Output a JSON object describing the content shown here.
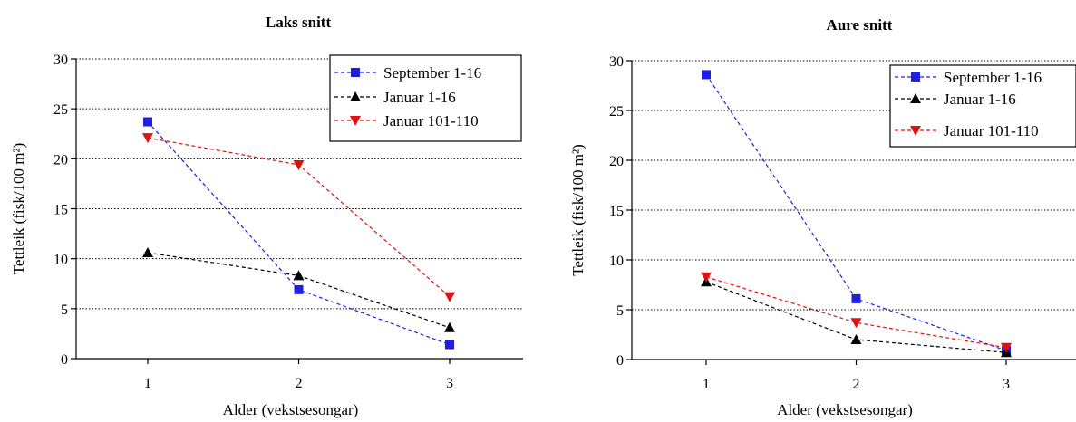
{
  "chart_data": [
    {
      "type": "line",
      "title": "Laks snitt",
      "xlabel": "Alder (vekstsesongar)",
      "ylabel": "Tettleik (fisk/100 m²)",
      "categories": [
        "1",
        "2",
        "3"
      ],
      "x": [
        1,
        2,
        3
      ],
      "ylim": [
        0,
        30
      ],
      "yticks": [
        "0",
        "5",
        "10",
        "15",
        "20",
        "25",
        "30"
      ],
      "grid": "horizontal dotted",
      "legend_position": "top-right",
      "series": [
        {
          "name": "September 1-16",
          "color": "#1f1fe0",
          "marker": "square",
          "values": [
            23.7,
            6.9,
            1.4
          ]
        },
        {
          "name": "Januar 1-16",
          "color": "#000000",
          "marker": "triangle-up",
          "values": [
            10.6,
            8.3,
            3.1
          ]
        },
        {
          "name": "Januar 101-110",
          "color": "#e01010",
          "marker": "triangle-down",
          "values": [
            22.1,
            19.4,
            6.2
          ]
        }
      ]
    },
    {
      "type": "line",
      "title": "Aure snitt",
      "xlabel": "Alder (vekstsesongar)",
      "ylabel": "Tettleik (fisk/100 m²)",
      "categories": [
        "1",
        "2",
        "3"
      ],
      "x": [
        1,
        2,
        3
      ],
      "ylim": [
        0,
        30
      ],
      "yticks": [
        "0",
        "5",
        "10",
        "15",
        "20",
        "25",
        "30"
      ],
      "grid": "horizontal dotted",
      "legend_position": "top-right",
      "series": [
        {
          "name": "September 1-16",
          "color": "#1f1fe0",
          "marker": "square",
          "values": [
            28.6,
            6.1,
            0.9
          ]
        },
        {
          "name": "Januar 1-16",
          "color": "#000000",
          "marker": "triangle-up",
          "values": [
            7.8,
            2.0,
            0.7
          ]
        },
        {
          "name": "Januar 101-110",
          "color": "#e01010",
          "marker": "triangle-down",
          "values": [
            8.3,
            3.7,
            1.2
          ]
        }
      ]
    }
  ]
}
